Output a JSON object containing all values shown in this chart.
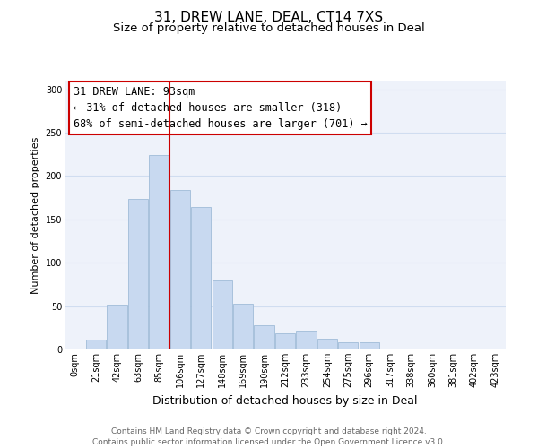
{
  "title": "31, DREW LANE, DEAL, CT14 7XS",
  "subtitle": "Size of property relative to detached houses in Deal",
  "xlabel": "Distribution of detached houses by size in Deal",
  "ylabel": "Number of detached properties",
  "footer_line1": "Contains HM Land Registry data © Crown copyright and database right 2024.",
  "footer_line2": "Contains public sector information licensed under the Open Government Licence v3.0.",
  "bar_labels": [
    "0sqm",
    "21sqm",
    "42sqm",
    "63sqm",
    "85sqm",
    "106sqm",
    "127sqm",
    "148sqm",
    "169sqm",
    "190sqm",
    "212sqm",
    "233sqm",
    "254sqm",
    "275sqm",
    "296sqm",
    "317sqm",
    "338sqm",
    "360sqm",
    "381sqm",
    "402sqm",
    "423sqm"
  ],
  "bar_values": [
    0,
    11,
    52,
    174,
    224,
    184,
    164,
    80,
    53,
    28,
    19,
    22,
    12,
    8,
    8,
    0,
    0,
    0,
    0,
    0,
    0
  ],
  "bar_color": "#c8d9f0",
  "bar_edge_color": "#a0bcd8",
  "grid_color": "#d0ddf0",
  "annotation_line1": "31 DREW LANE: 93sqm",
  "annotation_line2": "← 31% of detached houses are smaller (318)",
  "annotation_line3": "68% of semi-detached houses are larger (701) →",
  "vline_color": "#cc0000",
  "annotation_box_color": "#cc0000",
  "ylim": [
    0,
    310
  ],
  "yticks": [
    0,
    50,
    100,
    150,
    200,
    250,
    300
  ],
  "title_fontsize": 11,
  "subtitle_fontsize": 9.5,
  "xlabel_fontsize": 9,
  "ylabel_fontsize": 8,
  "annotation_fontsize": 8.5,
  "tick_fontsize": 7,
  "footer_fontsize": 6.5,
  "background_color": "#eef2fa"
}
